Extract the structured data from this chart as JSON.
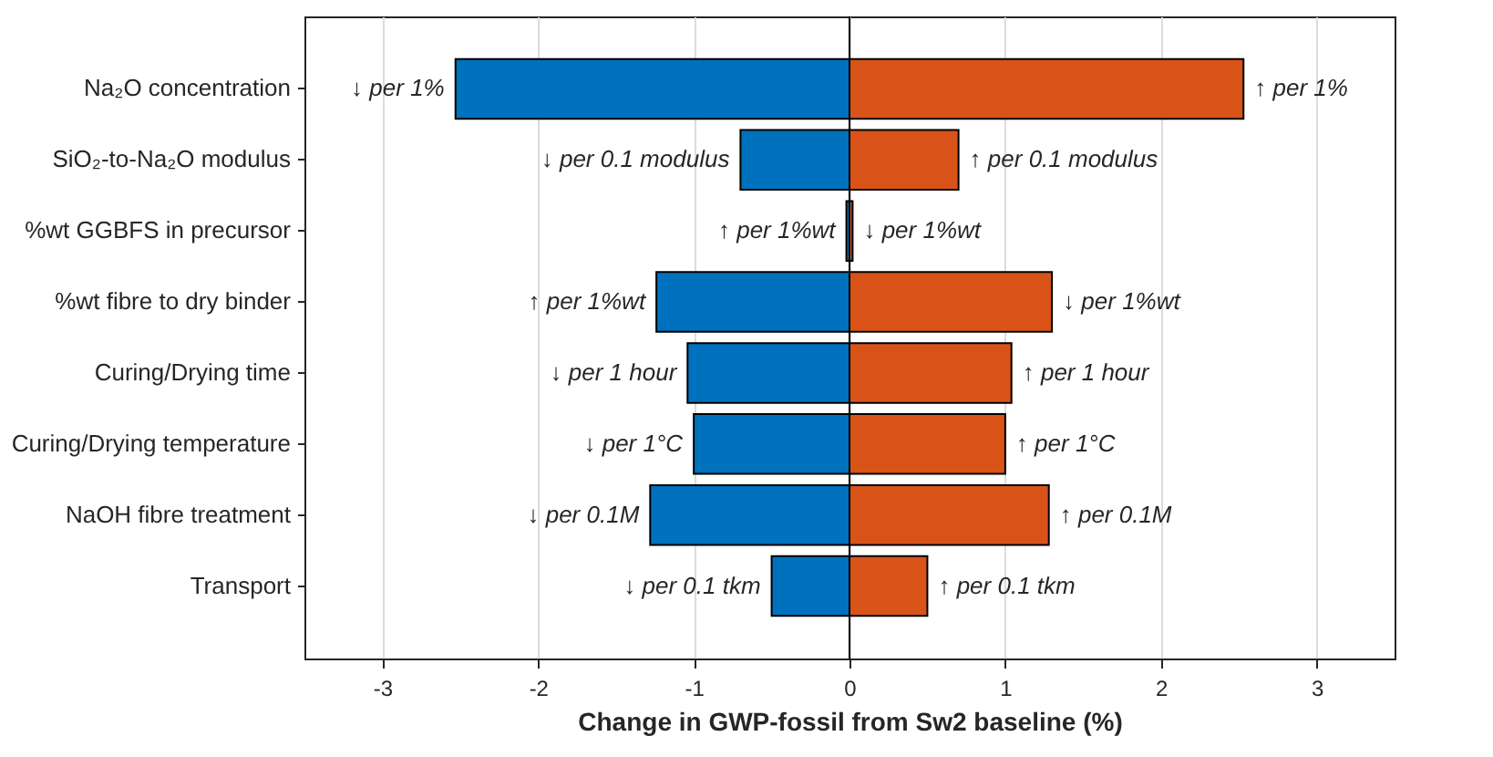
{
  "chart_data": {
    "type": "bar",
    "orientation": "horizontal",
    "stacked": true,
    "xlabel": "Change in GWP-fossil from Sw2 baseline (%)",
    "categories": [
      "Na₂O concentration",
      "SiO₂-to-Na₂O modulus",
      "%wt GGBFS in precursor",
      "%wt fibre to dry binder",
      "Curing/Drying time",
      "Curing/Drying temperature",
      "NaOH fibre treatment",
      "Transport"
    ],
    "series": [
      {
        "color": "#0072bd",
        "values": [
          -2.53,
          -0.7,
          -0.02,
          -1.24,
          -1.04,
          -1.0,
          -1.28,
          -0.5
        ]
      },
      {
        "color": "#d95319",
        "values": [
          2.53,
          0.7,
          0.02,
          1.3,
          1.04,
          1.0,
          1.28,
          0.5
        ]
      }
    ],
    "xlim": [
      -3.5,
      3.5
    ],
    "xticks": [
      -3,
      -2,
      -1,
      0,
      1,
      2,
      3
    ],
    "grid": "x",
    "ref_lines": [
      {
        "axis": "x",
        "value": 0,
        "color": "#000000"
      }
    ],
    "annotations": [
      {
        "text": "↓ per 1%",
        "x": -2.53,
        "y": "Na₂O concentration"
      },
      {
        "text": "↑ per 1%",
        "x": 2.53,
        "y": "Na₂O concentration"
      },
      {
        "text": "↓ per 0.1 modulus",
        "x": -0.7,
        "y": "SiO₂-to-Na₂O modulus"
      },
      {
        "text": "↑ per 0.1 modulus",
        "x": 0.7,
        "y": "SiO₂-to-Na₂O modulus"
      },
      {
        "text": "↑ per 1%wt",
        "x": -0.02,
        "y": "%wt GGBFS in precursor"
      },
      {
        "text": "↓ per 1%wt",
        "x": 0.02,
        "y": "%wt GGBFS in precursor"
      },
      {
        "text": "↑ per 1%wt",
        "x": -1.24,
        "y": "%wt fibre to dry binder"
      },
      {
        "text": "↓ per 1%wt",
        "x": 1.3,
        "y": "%wt fibre to dry binder"
      },
      {
        "text": "↓ per 1 hour",
        "x": -1.04,
        "y": "Curing/Drying time"
      },
      {
        "text": "↑ per 1 hour",
        "x": 1.04,
        "y": "Curing/Drying time"
      },
      {
        "text": "↓ per 1°C",
        "x": -1.0,
        "y": "Curing/Drying temperature"
      },
      {
        "text": "↑ per 1°C",
        "x": 1.0,
        "y": "Curing/Drying temperature"
      },
      {
        "text": "↓ per 0.1M",
        "x": -1.28,
        "y": "NaOH fibre treatment"
      },
      {
        "text": "↑ per 0.1M",
        "x": 1.28,
        "y": "NaOH fibre treatment"
      },
      {
        "text": "↓ per 0.1 tkm",
        "x": -0.5,
        "y": "Transport"
      },
      {
        "text": "↑ per 0.1 tkm",
        "x": 0.5,
        "y": "Transport"
      }
    ]
  }
}
